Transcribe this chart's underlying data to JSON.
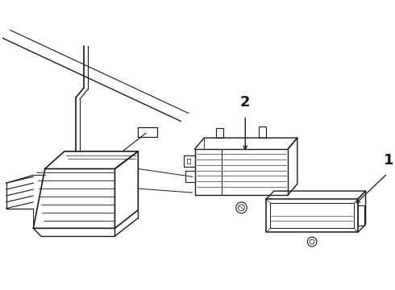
{
  "bg_color": "#ffffff",
  "line_color": "#1a1a1a",
  "label1": "1",
  "label2": "2",
  "figsize": [
    4.9,
    3.6
  ],
  "dpi": 100
}
